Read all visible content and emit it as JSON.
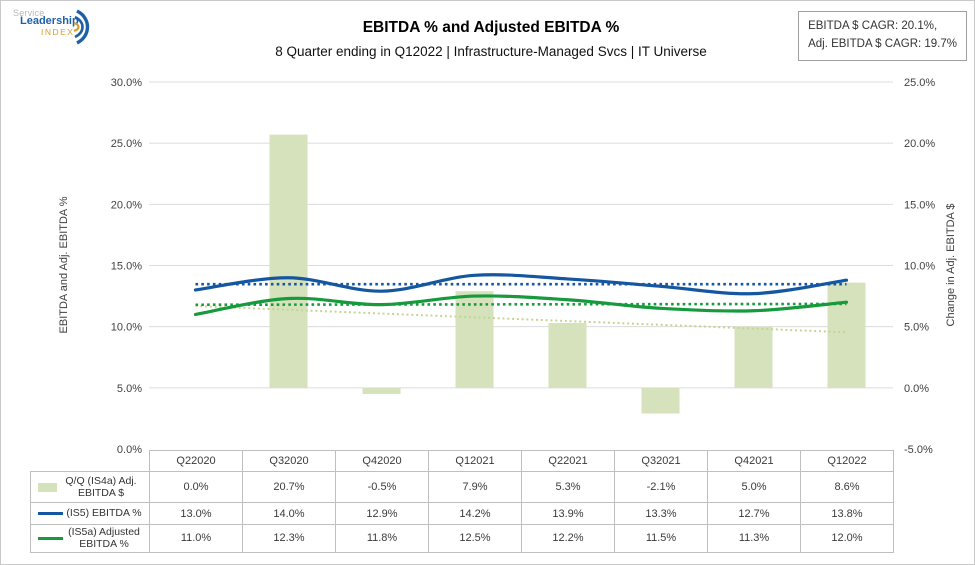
{
  "logo": {
    "line1": "Service",
    "line2": "Leadership",
    "line3": "INDEX"
  },
  "header": {
    "title": "EBITDA % and Adjusted EBITDA %",
    "subtitle": "8 Quarter ending in Q12022 | Infrastructure-Managed Svcs | IT Universe"
  },
  "cagr_box": {
    "line1": "EBITDA $ CAGR: 20.1%,",
    "line2": "Adj. EBITDA $ CAGR: 19.7%"
  },
  "chart_data": {
    "type": "combo-bar-line",
    "title": "EBITDA % and Adjusted EBITDA %",
    "categories": [
      "Q22020",
      "Q32020",
      "Q42020",
      "Q12021",
      "Q22021",
      "Q32021",
      "Q42021",
      "Q12022"
    ],
    "series": [
      {
        "name": "Q/Q (IS4a) Adj. EBITDA $",
        "type": "bar",
        "axis": "right",
        "color": "#d6e2bc",
        "trend_color": "#c5d591",
        "values": [
          0.0,
          20.7,
          -0.5,
          7.9,
          5.3,
          -2.1,
          5.0,
          8.6
        ],
        "labels": [
          "0.0%",
          "20.7%",
          "-0.5%",
          "7.9%",
          "5.3%",
          "-2.1%",
          "5.0%",
          "8.6%"
        ]
      },
      {
        "name": "(IS5) EBITDA %",
        "type": "line",
        "axis": "left",
        "color": "#1556a0",
        "trend_color": "#1556a0",
        "values": [
          13.0,
          14.0,
          12.9,
          14.2,
          13.9,
          13.3,
          12.7,
          13.8
        ],
        "labels": [
          "13.0%",
          "14.0%",
          "12.9%",
          "14.2%",
          "13.9%",
          "13.3%",
          "12.7%",
          "13.8%"
        ]
      },
      {
        "name": "(IS5a) Adjusted EBITDA %",
        "type": "line",
        "axis": "left",
        "color": "#169a3c",
        "trend_color": "#169a3c",
        "values": [
          11.0,
          12.3,
          11.8,
          12.5,
          12.2,
          11.5,
          11.3,
          12.0
        ],
        "labels": [
          "11.0%",
          "12.3%",
          "11.8%",
          "12.5%",
          "12.2%",
          "11.5%",
          "11.3%",
          "12.0%"
        ]
      }
    ],
    "trendlines": "dotted linear trendline drawn for each series",
    "ylabel_left": "EBITDA and Adj. EBITDA %",
    "ylabel_right": "Change in Adj. EBITDA $",
    "y_left": {
      "min": 0,
      "max": 30,
      "step": 5,
      "ticks": [
        "30.0%",
        "25.0%",
        "20.0%",
        "15.0%",
        "10.0%",
        "5.0%",
        "0.0%"
      ]
    },
    "y_right": {
      "min": -5,
      "max": 25,
      "step": 5,
      "ticks": [
        "25.0%",
        "20.0%",
        "15.0%",
        "10.0%",
        "5.0%",
        "0.0%",
        "-5.0%"
      ]
    },
    "grid": "horizontal gridlines on",
    "legend_position": "left column of data table below chart"
  }
}
